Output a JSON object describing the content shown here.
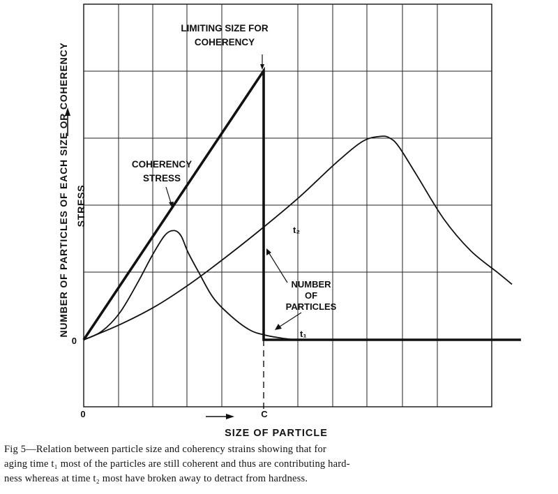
{
  "chart_data": {
    "type": "line",
    "xlabel": "SIZE OF PARTICLE",
    "ylabel": "NUMBER OF PARTICLES OF EACH SIZE OR COHERENCY",
    "ylabel2": "STRESS",
    "x_ticks": [
      {
        "x": 0,
        "label": "0"
      },
      {
        "x": 100,
        "label": "C"
      }
    ],
    "y_ticks": [
      {
        "y": 0,
        "label": "0"
      }
    ],
    "grid": true,
    "xlim": [
      0,
      243
    ],
    "ylim": [
      -40,
      200
    ],
    "annotations": {
      "limit_line1": "LIMITING SIZE FOR",
      "limit_line2": "COHERENCY",
      "stress_line1": "COHERENCY",
      "stress_line2": "STRESS",
      "number_line1": "NUMBER",
      "number_line2": "OF",
      "number_line3": "PARTICLES",
      "t1": "t₁",
      "t2": "t₂"
    },
    "series": [
      {
        "key": "stress",
        "x": [
          0,
          100,
          100,
          100,
          243
        ],
        "y": [
          0,
          160,
          160,
          0,
          0
        ]
      },
      {
        "key": "t1",
        "x": [
          0,
          10,
          20,
          30,
          38,
          45,
          50,
          54,
          58,
          64,
          72,
          82,
          92,
          100,
          110,
          118
        ],
        "y": [
          0,
          5,
          16,
          34,
          50,
          62,
          65,
          62,
          52,
          40,
          25,
          14,
          6,
          3,
          1,
          0
        ]
      },
      {
        "key": "t2",
        "x": [
          0,
          20,
          40,
          60,
          80,
          100,
          120,
          140,
          155,
          165,
          170,
          175,
          185,
          200,
          215,
          230,
          238
        ],
        "y": [
          0,
          9,
          20,
          34,
          50,
          67,
          85,
          105,
          118,
          121,
          120,
          115,
          98,
          72,
          53,
          40,
          33
        ]
      }
    ]
  },
  "caption": {
    "line1": "Fig 5—Relation between particle size and coherency strains showing that for",
    "line2": "aging time t₁ most of the particles are still coherent and thus are contributing hard-",
    "line3": "ness whereas at time t₂ most have broken away to detract from hardness."
  }
}
